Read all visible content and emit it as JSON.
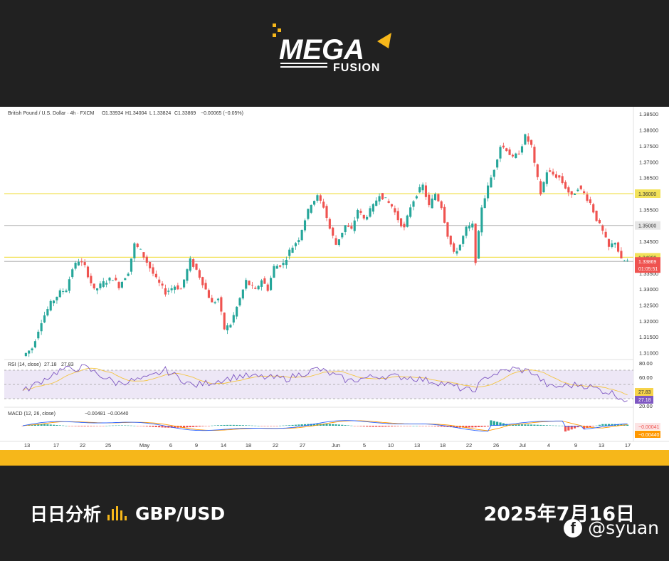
{
  "brand": {
    "name": "MEGA",
    "sub": "FUSION"
  },
  "header": {
    "symbol": "British Pound / U.S. Dollar · 4h · FXCM",
    "ohlc": {
      "O": "1.33934",
      "H": "1.34004",
      "L": "1.33824",
      "C": "1.33869",
      "change": "−0.00065 (−0.05%)"
    }
  },
  "footer": {
    "title": "日日分析",
    "pair": "GBP/USD",
    "date": "2025年7月16日",
    "handle": "@syuan"
  },
  "colors": {
    "up": "#26a69a",
    "down": "#ef5350",
    "gold_bar": "#f6b71a",
    "bg": "#212121",
    "hline": "#f2e25a",
    "rsi": "#7e57c2",
    "rsi_ma": "#f4c542",
    "macd": "#2962ff",
    "signal": "#ff9800"
  },
  "icons": {
    "footer": "bar-chart-icon",
    "social": "facebook-icon"
  },
  "chart_data": {
    "type": "candlestick",
    "timeframe": "4h",
    "y_ticks": [
      "1.38500",
      "1.38000",
      "1.37500",
      "1.37000",
      "1.36500",
      "1.36000",
      "1.35500",
      "1.35000",
      "1.34500",
      "1.34000",
      "1.33500",
      "1.33000",
      "1.32500",
      "1.32000",
      "1.31500",
      "1.31000"
    ],
    "x_ticks": [
      "13",
      "17",
      "22",
      "25",
      "May",
      "6",
      "9",
      "14",
      "18",
      "22",
      "27",
      "Jun",
      "5",
      "10",
      "13",
      "18",
      "22",
      "26",
      "Jul",
      "4",
      "9",
      "13",
      "17"
    ],
    "ylim": [
      1.309,
      1.3855
    ],
    "price_tags": [
      {
        "value": "1.36000",
        "style": "yellow"
      },
      {
        "value": "1.35000",
        "style": "gray"
      },
      {
        "value": "1.34000",
        "style": "yellow"
      },
      {
        "value": "1.33869",
        "style": "red"
      },
      {
        "value": "01:05:51",
        "style": "red"
      }
    ],
    "horizontal_lines": [
      1.36,
      1.35,
      1.34,
      1.3387
    ],
    "price_path": [
      [
        0,
        1.309
      ],
      [
        3,
        1.3115
      ],
      [
        6,
        1.32
      ],
      [
        9,
        1.3255
      ],
      [
        12,
        1.329
      ],
      [
        14,
        1.33
      ],
      [
        16,
        1.3365
      ],
      [
        18,
        1.339
      ],
      [
        20,
        1.337
      ],
      [
        23,
        1.3295
      ],
      [
        26,
        1.332
      ],
      [
        29,
        1.3335
      ],
      [
        31,
        1.331
      ],
      [
        34,
        1.3355
      ],
      [
        36,
        1.344
      ],
      [
        38,
        1.342
      ],
      [
        40,
        1.3385
      ],
      [
        43,
        1.333
      ],
      [
        46,
        1.329
      ],
      [
        49,
        1.331
      ],
      [
        51,
        1.33
      ],
      [
        54,
        1.339
      ],
      [
        56,
        1.336
      ],
      [
        58,
        1.332
      ],
      [
        61,
        1.3255
      ],
      [
        63,
        1.327
      ],
      [
        65,
        1.3175
      ],
      [
        67,
        1.319
      ],
      [
        70,
        1.327
      ],
      [
        72,
        1.3325
      ],
      [
        75,
        1.3295
      ],
      [
        77,
        1.333
      ],
      [
        79,
        1.33
      ],
      [
        81,
        1.337
      ],
      [
        84,
        1.338
      ],
      [
        86,
        1.342
      ],
      [
        89,
        1.346
      ],
      [
        91,
        1.352
      ],
      [
        93,
        1.357
      ],
      [
        95,
        1.359
      ],
      [
        97,
        1.356
      ],
      [
        99,
        1.349
      ],
      [
        101,
        1.344
      ],
      [
        104,
        1.35
      ],
      [
        106,
        1.3485
      ],
      [
        108,
        1.355
      ],
      [
        110,
        1.352
      ],
      [
        113,
        1.356
      ],
      [
        115,
        1.36
      ],
      [
        117,
        1.358
      ],
      [
        119,
        1.356
      ],
      [
        121,
        1.352
      ],
      [
        123,
        1.349
      ],
      [
        125,
        1.356
      ],
      [
        127,
        1.36
      ],
      [
        129,
        1.3625
      ],
      [
        131,
        1.356
      ],
      [
        133,
        1.36
      ],
      [
        135,
        1.356
      ],
      [
        137,
        1.347
      ],
      [
        139,
        1.341
      ],
      [
        141,
        1.344
      ],
      [
        143,
        1.349
      ],
      [
        145,
        1.35
      ],
      [
        146,
        1.339
      ],
      [
        148,
        1.356
      ],
      [
        150,
        1.362
      ],
      [
        152,
        1.368
      ],
      [
        154,
        1.375
      ],
      [
        156,
        1.374
      ],
      [
        158,
        1.371
      ],
      [
        160,
        1.373
      ],
      [
        162,
        1.378
      ],
      [
        164,
        1.375
      ],
      [
        165,
        1.369
      ],
      [
        167,
        1.36
      ],
      [
        169,
        1.367
      ],
      [
        171,
        1.366
      ],
      [
        173,
        1.365
      ],
      [
        175,
        1.362
      ],
      [
        177,
        1.359
      ],
      [
        179,
        1.362
      ],
      [
        181,
        1.36
      ],
      [
        183,
        1.357
      ],
      [
        185,
        1.352
      ],
      [
        187,
        1.348
      ],
      [
        189,
        1.343
      ],
      [
        191,
        1.345
      ],
      [
        193,
        1.339
      ],
      [
        195,
        1.3387
      ]
    ],
    "rsi": {
      "label": "RSI (14, close)",
      "rsi": "27.18",
      "ma": "27.83",
      "ticks": [
        "80.00",
        "60.00",
        "20.00"
      ],
      "levels": [
        70,
        50,
        30
      ],
      "ylim": [
        20,
        80
      ],
      "path": [
        [
          0,
          40
        ],
        [
          12,
          70
        ],
        [
          20,
          74
        ],
        [
          30,
          52
        ],
        [
          40,
          58
        ],
        [
          46,
          70
        ],
        [
          55,
          48
        ],
        [
          70,
          62
        ],
        [
          85,
          58
        ],
        [
          95,
          72
        ],
        [
          105,
          55
        ],
        [
          115,
          62
        ],
        [
          125,
          60
        ],
        [
          135,
          52
        ],
        [
          145,
          40
        ],
        [
          150,
          62
        ],
        [
          158,
          72
        ],
        [
          164,
          68
        ],
        [
          170,
          46
        ],
        [
          180,
          50
        ],
        [
          190,
          38
        ],
        [
          195,
          27.18
        ]
      ]
    },
    "macd": {
      "label": "MACD (12, 26, close)",
      "macd": "−0.00481",
      "signal": "−0.00440",
      "tags": [
        "−0.00041",
        "−0.00440"
      ]
    }
  }
}
